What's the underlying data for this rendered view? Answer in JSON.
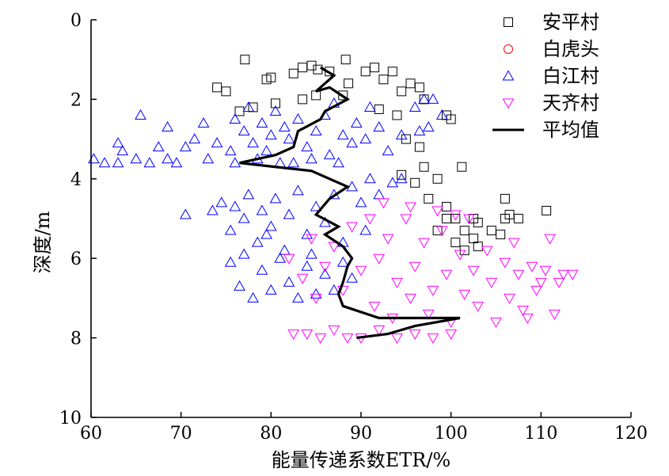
{
  "chart_data": {
    "type": "scatter",
    "xlabel": "能量传递系数ETR/%",
    "ylabel": "深度/m",
    "xlim": [
      60,
      120
    ],
    "ylim": [
      0,
      10
    ],
    "y_inverted": true,
    "xticks": [
      60,
      70,
      80,
      90,
      100,
      110,
      120
    ],
    "yticks": [
      0,
      2,
      4,
      6,
      8,
      10
    ],
    "grid": false,
    "legend_position": "top-right",
    "series": [
      {
        "name": "安平村",
        "marker": "square",
        "color": "#000000",
        "points": [
          [
            77.1,
            1.0
          ],
          [
            79.5,
            1.5
          ],
          [
            80.0,
            1.45
          ],
          [
            82.5,
            1.35
          ],
          [
            83.5,
            1.2
          ],
          [
            84.5,
            1.15
          ],
          [
            85.2,
            1.25
          ],
          [
            86.5,
            1.3
          ],
          [
            88.3,
            1.0
          ],
          [
            88.6,
            1.6
          ],
          [
            90.5,
            1.3
          ],
          [
            91.5,
            1.2
          ],
          [
            92.5,
            1.5
          ],
          [
            93.5,
            1.3
          ],
          [
            94.5,
            1.8
          ],
          [
            95.5,
            1.6
          ],
          [
            96.5,
            1.7
          ],
          [
            74.0,
            1.7
          ],
          [
            75.0,
            1.8
          ],
          [
            76.5,
            2.3
          ],
          [
            78.0,
            2.2
          ],
          [
            80.5,
            2.1
          ],
          [
            83.5,
            2.0
          ],
          [
            85.0,
            1.9
          ],
          [
            88.0,
            1.9
          ],
          [
            92.0,
            2.25
          ],
          [
            94.0,
            2.4
          ],
          [
            97.0,
            2.0
          ],
          [
            99.5,
            2.4
          ],
          [
            100.0,
            2.5
          ],
          [
            96.5,
            3.2
          ],
          [
            95.0,
            3.0
          ],
          [
            97.0,
            3.7
          ],
          [
            98.5,
            4.0
          ],
          [
            101.2,
            3.7
          ],
          [
            97.5,
            4.5
          ],
          [
            99.5,
            4.7
          ],
          [
            100.5,
            5.0
          ],
          [
            101.5,
            5.3
          ],
          [
            102.5,
            5.5
          ],
          [
            103.0,
            5.1
          ],
          [
            104.5,
            5.3
          ],
          [
            105.5,
            5.4
          ],
          [
            106.0,
            4.5
          ],
          [
            106.0,
            5.0
          ],
          [
            106.5,
            4.9
          ],
          [
            107.5,
            5.0
          ],
          [
            110.6,
            4.8
          ],
          [
            99.5,
            5.0
          ],
          [
            100.5,
            5.6
          ],
          [
            101.5,
            5.8
          ],
          [
            103.0,
            5.7
          ],
          [
            102.5,
            5.0
          ],
          [
            98.5,
            5.3
          ],
          [
            94.5,
            3.9
          ],
          [
            96.0,
            4.1
          ]
        ]
      },
      {
        "name": "白虎头",
        "marker": "circle",
        "color": "#ff0000",
        "points": []
      },
      {
        "name": "白江村",
        "marker": "triangle-up",
        "color": "#0000ff",
        "points": [
          [
            60.3,
            3.5
          ],
          [
            61.5,
            3.6
          ],
          [
            63.0,
            3.6
          ],
          [
            63.0,
            3.1
          ],
          [
            63.5,
            3.3
          ],
          [
            65.0,
            3.5
          ],
          [
            65.5,
            2.4
          ],
          [
            66.5,
            3.6
          ],
          [
            67.5,
            3.2
          ],
          [
            68.5,
            2.7
          ],
          [
            68.5,
            3.5
          ],
          [
            69.5,
            3.6
          ],
          [
            70.5,
            3.2
          ],
          [
            71.5,
            3.0
          ],
          [
            72.5,
            2.6
          ],
          [
            73.0,
            3.5
          ],
          [
            74.0,
            3.1
          ],
          [
            75.5,
            3.3
          ],
          [
            76.0,
            2.5
          ],
          [
            77.0,
            2.8
          ],
          [
            77.5,
            2.2
          ],
          [
            78.0,
            3.1
          ],
          [
            79.0,
            2.6
          ],
          [
            79.5,
            3.3
          ],
          [
            80.0,
            2.9
          ],
          [
            80.5,
            2.3
          ],
          [
            81.0,
            3.6
          ],
          [
            81.5,
            2.7
          ],
          [
            82.0,
            3.0
          ],
          [
            83.0,
            2.5
          ],
          [
            84.0,
            3.2
          ],
          [
            85.0,
            2.8
          ],
          [
            86.0,
            2.4
          ],
          [
            86.5,
            3.4
          ],
          [
            87.0,
            2.1
          ],
          [
            88.0,
            2.9
          ],
          [
            89.0,
            3.1
          ],
          [
            89.5,
            2.6
          ],
          [
            90.5,
            3.0
          ],
          [
            91.0,
            2.2
          ],
          [
            92.0,
            2.7
          ],
          [
            93.0,
            3.3
          ],
          [
            94.5,
            2.9
          ],
          [
            96.0,
            2.2
          ],
          [
            96.5,
            2.8
          ],
          [
            97.0,
            2.0
          ],
          [
            97.5,
            2.7
          ],
          [
            98.0,
            2.0
          ],
          [
            99.0,
            2.4
          ],
          [
            76.0,
            3.6
          ],
          [
            78.5,
            3.5
          ],
          [
            82.5,
            3.6
          ],
          [
            84.5,
            3.5
          ],
          [
            87.5,
            3.6
          ],
          [
            70.5,
            4.9
          ],
          [
            73.5,
            4.8
          ],
          [
            74.5,
            4.6
          ],
          [
            75.5,
            5.3
          ],
          [
            76.0,
            4.7
          ],
          [
            77.0,
            5.0
          ],
          [
            77.5,
            4.4
          ],
          [
            78.5,
            5.6
          ],
          [
            79.0,
            4.8
          ],
          [
            80.0,
            5.2
          ],
          [
            80.5,
            4.5
          ],
          [
            81.5,
            5.8
          ],
          [
            82.0,
            4.9
          ],
          [
            83.0,
            4.3
          ],
          [
            84.0,
            5.4
          ],
          [
            85.0,
            4.7
          ],
          [
            86.0,
            5.1
          ],
          [
            87.0,
            4.4
          ],
          [
            88.0,
            5.6
          ],
          [
            89.0,
            4.2
          ],
          [
            90.0,
            4.6
          ],
          [
            91.0,
            4.0
          ],
          [
            92.0,
            4.4
          ],
          [
            93.5,
            4.1
          ],
          [
            94.5,
            4.0
          ],
          [
            75.5,
            6.1
          ],
          [
            76.5,
            6.7
          ],
          [
            77.0,
            5.9
          ],
          [
            78.0,
            7.0
          ],
          [
            79.0,
            6.3
          ],
          [
            80.0,
            6.8
          ],
          [
            81.0,
            6.0
          ],
          [
            82.0,
            6.6
          ],
          [
            83.0,
            7.0
          ],
          [
            84.0,
            6.2
          ],
          [
            85.0,
            6.9
          ],
          [
            86.0,
            6.4
          ],
          [
            87.0,
            6.8
          ],
          [
            88.0,
            6.1
          ],
          [
            89.0,
            6.5
          ],
          [
            79.5,
            5.4
          ],
          [
            84.5,
            5.9
          ],
          [
            90.5,
            5.3
          ]
        ]
      },
      {
        "name": "天齐村",
        "marker": "triangle-down",
        "color": "#ff00ff",
        "points": [
          [
            82.5,
            7.9
          ],
          [
            84.0,
            7.9
          ],
          [
            85.5,
            8.0
          ],
          [
            87.0,
            7.8
          ],
          [
            88.5,
            8.0
          ],
          [
            90.0,
            8.0
          ],
          [
            92.0,
            7.8
          ],
          [
            94.0,
            8.0
          ],
          [
            96.0,
            7.9
          ],
          [
            98.0,
            8.0
          ],
          [
            100.0,
            7.9
          ],
          [
            82.0,
            6.0
          ],
          [
            83.5,
            6.5
          ],
          [
            84.5,
            5.5
          ],
          [
            85.0,
            7.0
          ],
          [
            86.0,
            6.2
          ],
          [
            87.0,
            5.7
          ],
          [
            88.0,
            6.8
          ],
          [
            89.0,
            5.2
          ],
          [
            90.0,
            6.3
          ],
          [
            91.0,
            5.0
          ],
          [
            91.5,
            7.2
          ],
          [
            92.0,
            6.0
          ],
          [
            93.0,
            5.5
          ],
          [
            93.5,
            7.5
          ],
          [
            94.0,
            6.6
          ],
          [
            95.0,
            5.0
          ],
          [
            95.5,
            7.0
          ],
          [
            96.0,
            6.2
          ],
          [
            97.0,
            5.6
          ],
          [
            97.5,
            7.4
          ],
          [
            98.0,
            6.8
          ],
          [
            99.0,
            5.3
          ],
          [
            99.5,
            6.4
          ],
          [
            100.0,
            7.6
          ],
          [
            101.0,
            5.9
          ],
          [
            101.5,
            6.9
          ],
          [
            102.0,
            5.0
          ],
          [
            102.5,
            6.3
          ],
          [
            103.0,
            7.2
          ],
          [
            104.0,
            5.8
          ],
          [
            104.5,
            6.6
          ],
          [
            105.0,
            7.6
          ],
          [
            106.0,
            6.1
          ],
          [
            106.5,
            7.0
          ],
          [
            107.0,
            5.6
          ],
          [
            107.5,
            6.4
          ],
          [
            108.0,
            7.3
          ],
          [
            108.5,
            7.5
          ],
          [
            109.0,
            6.2
          ],
          [
            109.5,
            6.8
          ],
          [
            110.0,
            6.6
          ],
          [
            110.5,
            6.3
          ],
          [
            111.0,
            5.5
          ],
          [
            111.5,
            7.4
          ],
          [
            112.0,
            6.6
          ],
          [
            112.5,
            6.4
          ],
          [
            113.5,
            6.4
          ],
          [
            98.5,
            4.8
          ],
          [
            100.5,
            4.9
          ],
          [
            95.5,
            4.7
          ],
          [
            92.5,
            4.6
          ]
        ]
      },
      {
        "name": "平均值",
        "marker": "line",
        "color": "#000000",
        "points": [
          [
            85.5,
            1.2
          ],
          [
            87.0,
            1.4
          ],
          [
            86.0,
            1.6
          ],
          [
            85.0,
            1.8
          ],
          [
            86.5,
            1.7
          ],
          [
            88.5,
            2.0
          ],
          [
            86.0,
            2.3
          ],
          [
            85.5,
            2.5
          ],
          [
            83.0,
            2.8
          ],
          [
            82.5,
            3.2
          ],
          [
            80.5,
            3.4
          ],
          [
            76.5,
            3.6
          ],
          [
            80.5,
            3.7
          ],
          [
            84.5,
            3.8
          ],
          [
            88.5,
            4.2
          ],
          [
            86.5,
            4.5
          ],
          [
            85.0,
            4.9
          ],
          [
            87.5,
            5.2
          ],
          [
            86.0,
            5.4
          ],
          [
            88.0,
            5.7
          ],
          [
            89.0,
            6.0
          ],
          [
            88.5,
            6.2
          ],
          [
            88.0,
            6.6
          ],
          [
            87.5,
            6.9
          ],
          [
            88.0,
            7.2
          ],
          [
            92.0,
            7.5
          ],
          [
            101.0,
            7.5
          ],
          [
            96.0,
            7.7
          ],
          [
            93.0,
            7.9
          ],
          [
            89.5,
            8.0
          ]
        ]
      }
    ]
  }
}
